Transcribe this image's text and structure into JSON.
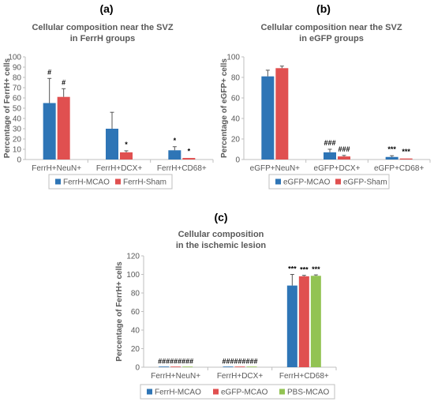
{
  "colors": {
    "blue": "#2E75B6",
    "red": "#E05050",
    "green": "#92C353",
    "axis": "#BFBFBF",
    "text": "#595959"
  },
  "chart_data": [
    {
      "type": "bar",
      "panel_label": "(a)",
      "title": "Cellular composition near the SVZ in FerrH groups",
      "title_lines": [
        "Cellular composition near the SVZ",
        "in FerrH groups"
      ],
      "ylabel": "Percentage of FerrH+ cells",
      "ylim": [
        0,
        100
      ],
      "yticks": [
        0,
        10,
        20,
        30,
        40,
        50,
        60,
        70,
        80,
        90,
        100
      ],
      "categories": [
        "FerrH+NeuN+",
        "FerrH+DCX+",
        "FerrH+CD68+"
      ],
      "series": [
        {
          "name": "FerrH-MCAO",
          "color": "#2E75B6",
          "values": [
            55,
            30,
            9
          ],
          "errors": [
            24,
            16,
            3.5
          ],
          "annotations": [
            "#",
            "",
            "*"
          ]
        },
        {
          "name": "FerrH-Sham",
          "color": "#E05050",
          "values": [
            61,
            7,
            1.5
          ],
          "errors": [
            8,
            1.5,
            0.5
          ],
          "annotations": [
            "#",
            "*",
            "*"
          ]
        }
      ],
      "grid": false,
      "legend": "bottom"
    },
    {
      "type": "bar",
      "panel_label": "(b)",
      "title": "Cellular composition near the SVZ in eGFP groups",
      "title_lines": [
        "Cellular composition near the SVZ",
        "in eGFP groups"
      ],
      "ylabel": "Percentage of eGFP+ cells",
      "ylim": [
        0,
        100
      ],
      "yticks": [
        0,
        20,
        40,
        60,
        80,
        100
      ],
      "categories": [
        "eGFP+NeuN+",
        "eGFP+DCX+",
        "eGFP+CD68+"
      ],
      "series": [
        {
          "name": "eGFP-MCAO",
          "color": "#2E75B6",
          "values": [
            81,
            7,
            2.5
          ],
          "errors": [
            6,
            3,
            1.2
          ],
          "annotations": [
            "",
            "###",
            "***"
          ]
        },
        {
          "name": "eGFP-Sham",
          "color": "#E05050",
          "values": [
            89,
            3,
            1
          ],
          "errors": [
            2,
            1,
            0.4
          ],
          "annotations": [
            "",
            "###",
            "***"
          ]
        }
      ],
      "grid": false,
      "legend": "bottom"
    },
    {
      "type": "bar",
      "panel_label": "(c)",
      "title": "Cellular composition in the ischemic lesion",
      "title_lines": [
        "Cellular composition",
        "in the ischemic lesion"
      ],
      "ylabel": "Percentage of FerrH+ cells",
      "ylim": [
        0,
        120
      ],
      "yticks": [
        0,
        20,
        40,
        60,
        80,
        100,
        120
      ],
      "categories": [
        "FerrH+NeuN+",
        "FerrH+DCX+",
        "FerrH+CD68+"
      ],
      "series": [
        {
          "name": "FerrH-MCAO",
          "color": "#2E75B6",
          "values": [
            0.3,
            0.3,
            88
          ],
          "errors": [
            0.2,
            0.2,
            12
          ],
          "annotations": [
            "###",
            "###",
            "***"
          ]
        },
        {
          "name": "eGFP-MCAO",
          "color": "#E05050",
          "values": [
            0.3,
            0.3,
            98
          ],
          "errors": [
            0.2,
            0.2,
            1
          ],
          "annotations": [
            "###",
            "###",
            "***"
          ]
        },
        {
          "name": "PBS-MCAO",
          "color": "#92C353",
          "values": [
            0.3,
            0.3,
            98.5
          ],
          "errors": [
            0.2,
            0.2,
            1
          ],
          "annotations": [
            "###",
            "###",
            "***"
          ]
        }
      ],
      "grid": false,
      "legend": "bottom"
    }
  ]
}
